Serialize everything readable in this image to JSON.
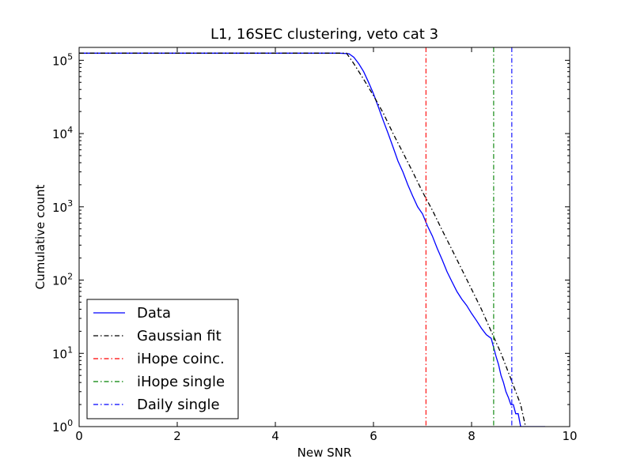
{
  "chart_data": {
    "type": "line",
    "title": "L1, 16SEC clustering, veto cat 3",
    "xlabel": "New SNR",
    "ylabel": "Cumulative count",
    "xlim": [
      0,
      10
    ],
    "ylim": [
      1,
      150000
    ],
    "yscale": "log",
    "grid": false,
    "legend_position": "lower-left",
    "x_ticks": [
      "0",
      "2",
      "4",
      "6",
      "8",
      "10"
    ],
    "y_ticks": [
      {
        "base": "10",
        "exp": "0"
      },
      {
        "base": "10",
        "exp": "1"
      },
      {
        "base": "10",
        "exp": "2"
      },
      {
        "base": "10",
        "exp": "3"
      },
      {
        "base": "10",
        "exp": "4"
      },
      {
        "base": "10",
        "exp": "5"
      }
    ],
    "series": [
      {
        "name": "Data",
        "color": "#0000ff",
        "style": "solid",
        "x": [
          0.0,
          5.3,
          5.5,
          5.6,
          5.7,
          5.8,
          5.9,
          6.0,
          6.1,
          6.2,
          6.3,
          6.4,
          6.5,
          6.6,
          6.7,
          6.8,
          6.9,
          7.0,
          7.1,
          7.2,
          7.3,
          7.4,
          7.5,
          7.6,
          7.7,
          7.8,
          7.9,
          8.0,
          8.1,
          8.2,
          8.3,
          8.4,
          8.45,
          8.5,
          8.55,
          8.6,
          8.65,
          8.7,
          8.75,
          8.8,
          8.85,
          8.9,
          8.95,
          9.0,
          9.1,
          9.5
        ],
        "y": [
          125000,
          125000,
          123000,
          110000,
          90000,
          70000,
          50000,
          35000,
          23000,
          15000,
          10000,
          6500,
          4200,
          3000,
          2000,
          1400,
          1000,
          800,
          550,
          400,
          270,
          190,
          130,
          95,
          70,
          55,
          45,
          35,
          28,
          22,
          18,
          16,
          12,
          9,
          7,
          5,
          4,
          3,
          2.5,
          2,
          2,
          1.5,
          1.5,
          1,
          1,
          1
        ]
      },
      {
        "name": "Gaussian fit",
        "color": "#000000",
        "style": "dashdot",
        "x": [
          0.0,
          5.45,
          5.6,
          5.8,
          6.0,
          6.2,
          6.4,
          6.6,
          6.8,
          7.0,
          7.2,
          7.4,
          7.6,
          7.8,
          8.0,
          8.2,
          8.4,
          8.6,
          8.8,
          9.0,
          9.1
        ],
        "y": [
          125000,
          125000,
          90000,
          55000,
          33000,
          19000,
          10000,
          5500,
          3000,
          1600,
          900,
          480,
          260,
          140,
          75,
          40,
          20,
          10,
          4.5,
          2,
          1
        ]
      }
    ],
    "reference_lines": [
      {
        "name": "iHope coinc.",
        "color": "#ff0000",
        "style": "dashdot",
        "x": 7.07
      },
      {
        "name": "iHope single",
        "color": "#008000",
        "style": "dashdot",
        "x": 8.45
      },
      {
        "name": "Daily single",
        "color": "#0000ff",
        "style": "dashdot",
        "x": 8.82
      }
    ]
  }
}
